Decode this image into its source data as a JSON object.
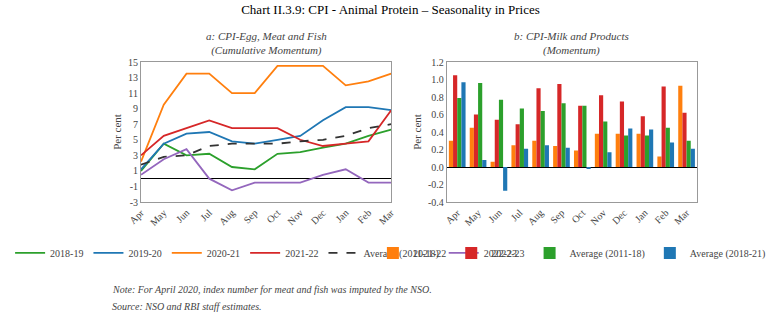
{
  "title": "Chart II.3.9: CPI - Animal Protein – Seasonality in Prices",
  "annotations": [
    "Note: For April 2020, index number for meat and fish was imputed by the NSO.",
    "Source: NSO and RBI staff estimates."
  ],
  "chart_data": [
    {
      "type": "line",
      "title": "a: CPI-Egg, Meat and Fish\n(Cumulative Momentum)",
      "categories": [
        "Apr",
        "May",
        "Jun",
        "Jul",
        "Aug",
        "Sep",
        "Oct",
        "Nov",
        "Dec",
        "Jan",
        "Feb",
        "Mar"
      ],
      "ylabel": "Per cent",
      "ylim": [
        -3,
        15
      ],
      "yticks": [
        -3,
        -1,
        1,
        3,
        5,
        7,
        9,
        11,
        13,
        15
      ],
      "grid": false,
      "legend": "bottom",
      "series": [
        {
          "name": "2018-19",
          "color": "#2ca02c",
          "line_style": "solid",
          "values": [
            1.0,
            4.5,
            3.0,
            3.2,
            1.5,
            1.2,
            3.2,
            3.4,
            4.0,
            4.5,
            5.5,
            6.3
          ]
        },
        {
          "name": "2019-20",
          "color": "#1f77b4",
          "line_style": "solid",
          "values": [
            1.2,
            4.5,
            5.8,
            6.0,
            4.8,
            4.5,
            5.0,
            5.5,
            7.5,
            9.2,
            9.2,
            8.8
          ]
        },
        {
          "name": "2020-21",
          "color": "#ff7f0e",
          "line_style": "solid",
          "values": [
            2.2,
            9.5,
            13.5,
            13.5,
            11.0,
            11.0,
            14.5,
            14.5,
            14.5,
            12.0,
            12.5,
            13.5
          ]
        },
        {
          "name": "2021-22",
          "color": "#d62728",
          "line_style": "solid",
          "values": [
            3.0,
            5.5,
            6.5,
            7.5,
            6.5,
            6.5,
            6.5,
            5.0,
            4.2,
            4.5,
            4.8,
            8.8
          ]
        },
        {
          "name": "Average (2011-18)",
          "color": "#333333",
          "line_style": "dashed",
          "values": [
            1.8,
            2.8,
            3.0,
            4.2,
            4.5,
            4.5,
            4.5,
            4.8,
            5.0,
            5.5,
            6.5,
            7.0
          ]
        },
        {
          "name": "2022-23",
          "color": "#9467bd",
          "line_style": "solid",
          "values": [
            0.5,
            2.5,
            3.8,
            0.0,
            -1.5,
            -0.5,
            -0.5,
            -0.5,
            0.5,
            1.2,
            -0.5,
            -0.5
          ]
        }
      ]
    },
    {
      "type": "bar",
      "title": "b: CPI-Milk and Products\n(Momentum)",
      "categories": [
        "Apr",
        "May",
        "Jun",
        "Jul",
        "Aug",
        "Sep",
        "Oct",
        "Nov",
        "Dec",
        "Jan",
        "Feb",
        "Mar"
      ],
      "ylabel": "Per cent",
      "ylim": [
        -0.4,
        1.2
      ],
      "yticks": [
        -0.4,
        -0.2,
        {
          "value": 0,
          "label": "0.0"
        },
        0.2,
        0.4,
        0.6,
        0.8,
        {
          "value": 1,
          "label": "1.0"
        },
        1.2
      ],
      "grid": false,
      "legend": "bottom",
      "series": [
        {
          "name": "2021-22",
          "color": "#ff7f0e",
          "values": [
            0.3,
            0.45,
            0.06,
            0.25,
            0.3,
            0.24,
            0.19,
            0.38,
            0.38,
            0.38,
            0.12,
            0.93
          ]
        },
        {
          "name": "2022-23",
          "color": "#d62728",
          "values": [
            1.05,
            0.6,
            0.54,
            0.49,
            0.9,
            0.95,
            0.7,
            0.82,
            0.75,
            0.58,
            0.92,
            0.62
          ]
        },
        {
          "name": "Average (2011-18)",
          "color": "#2ca02c",
          "values": [
            0.79,
            0.96,
            0.77,
            0.67,
            0.64,
            0.73,
            0.7,
            0.52,
            0.36,
            0.36,
            0.45,
            0.3
          ]
        },
        {
          "name": "Average (2018-21)",
          "color": "#1f77b4",
          "values": [
            0.97,
            0.08,
            -0.27,
            0.21,
            0.25,
            0.22,
            -0.02,
            0.17,
            0.44,
            0.43,
            0.28,
            0.21
          ]
        }
      ]
    }
  ]
}
